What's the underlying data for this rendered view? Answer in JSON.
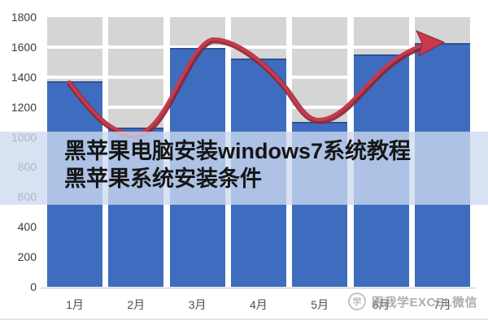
{
  "overlay": {
    "line1": "黑苹果电脑安装windows7系统教程",
    "line2": "黑苹果系统安装条件",
    "band_color": "rgba(205,218,240,0.78)",
    "text_color": "#151515"
  },
  "watermark": {
    "icon": "logo-circle-icon",
    "icon_glyph": "学",
    "text": "跟我学EXCEL微信",
    "color": "#8f8f8f"
  },
  "chart_data": {
    "type": "bar",
    "title": "",
    "categories": [
      "1月",
      "2月",
      "3月",
      "4月",
      "5月",
      "6月",
      "7月"
    ],
    "values": [
      1370,
      1065,
      1595,
      1525,
      1100,
      1550,
      1625
    ],
    "y_ticks": [
      0,
      200,
      400,
      600,
      800,
      1000,
      1200,
      1400,
      1600,
      1800
    ],
    "ylim": [
      0,
      1800
    ],
    "xlabel": "",
    "ylabel": "",
    "grid": true,
    "legend": false,
    "bar_color": "#3e6cbf",
    "bar_background_color": "#d5d5d5",
    "trend_arrow": {
      "style": "curved-arrow-right",
      "color": "#c9394a",
      "shadow_color": "#8a2536",
      "follows": "bar heights: down to 2月, peak at 3月, dip at 5月, rising through 7月"
    }
  }
}
